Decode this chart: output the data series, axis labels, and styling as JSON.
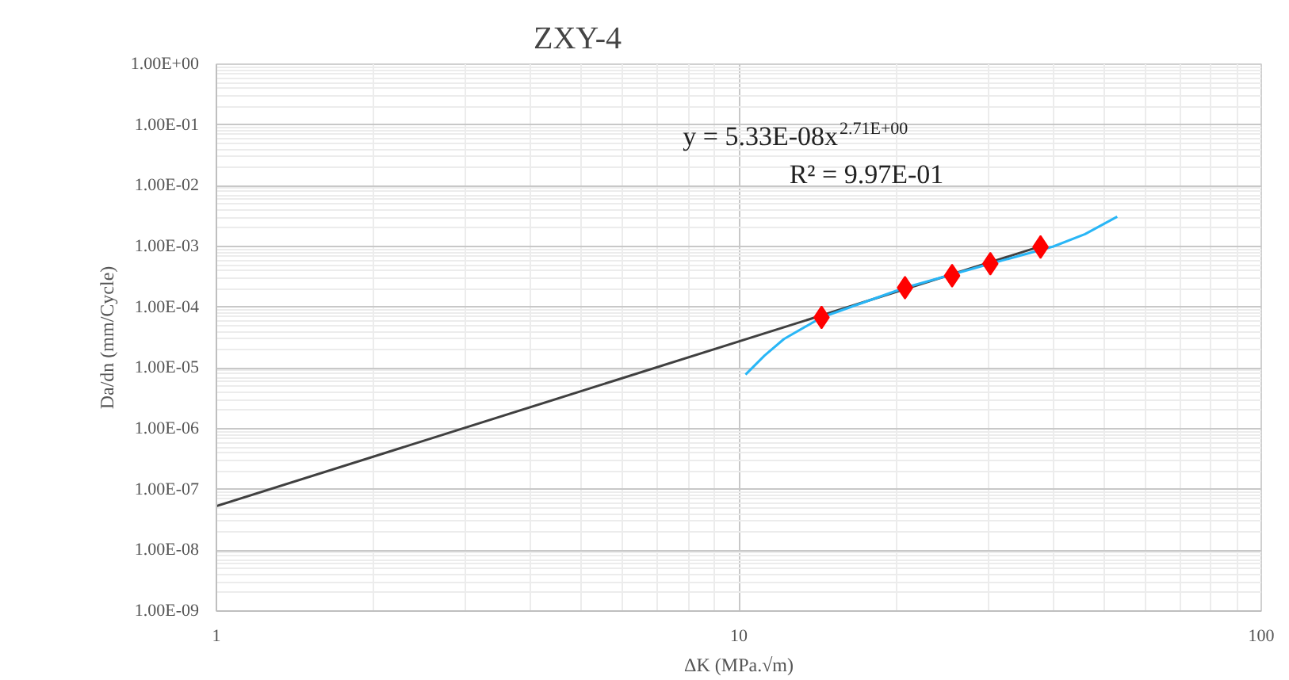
{
  "chart_data": {
    "type": "scatter",
    "title": "ZXY-4",
    "xlabel": "ΔK (MPa.√m)",
    "ylabel": "Da/dn (mm/Cycle)",
    "log": "xy",
    "grid": true,
    "xlim": [
      1,
      100
    ],
    "xticks": [
      1,
      10,
      100
    ],
    "ylim": [
      1e-09,
      1
    ],
    "yticks": [
      {
        "value": 1e-09,
        "label": "1.00E-09"
      },
      {
        "value": 1e-08,
        "label": "1.00E-08"
      },
      {
        "value": 1e-07,
        "label": "1.00E-07"
      },
      {
        "value": 1e-06,
        "label": "1.00E-06"
      },
      {
        "value": 1e-05,
        "label": "1.00E-05"
      },
      {
        "value": 0.0001,
        "label": "1.00E-04"
      },
      {
        "value": 0.001,
        "label": "1.00E-03"
      },
      {
        "value": 0.01,
        "label": "1.00E-02"
      },
      {
        "value": 0.1,
        "label": "1.00E-01"
      },
      {
        "value": 1,
        "label": "1.00E+00"
      }
    ],
    "annotations": [
      "y = 5.33E-08x$^{2.71E+00}$",
      "R² = 9.97E-01"
    ],
    "series": [
      {
        "type": "line",
        "color": "#404040",
        "x": [
          1,
          38
        ],
        "values": [
          5.33e-08,
          0.00102
        ],
        "marker": "none",
        "line_style": "solid"
      },
      {
        "type": "line",
        "color": "#29b6f6",
        "x": [
          10.3,
          11.2,
          12.2,
          14.4,
          20.8,
          30.3,
          40,
          46,
          53
        ],
        "values": [
          7.8e-06,
          1.6e-05,
          3e-05,
          6.8e-05,
          0.00021,
          0.00052,
          0.001,
          0.0016,
          0.0031
        ],
        "marker": "none",
        "line_style": "solid"
      },
      {
        "color": "#ff0000",
        "x": [
          14.4,
          20.8,
          25.6,
          30.3,
          37.8
        ],
        "values": [
          6.8e-05,
          0.00021,
          0.00033,
          0.00052,
          0.00098
        ],
        "marker": "diamond"
      }
    ]
  }
}
